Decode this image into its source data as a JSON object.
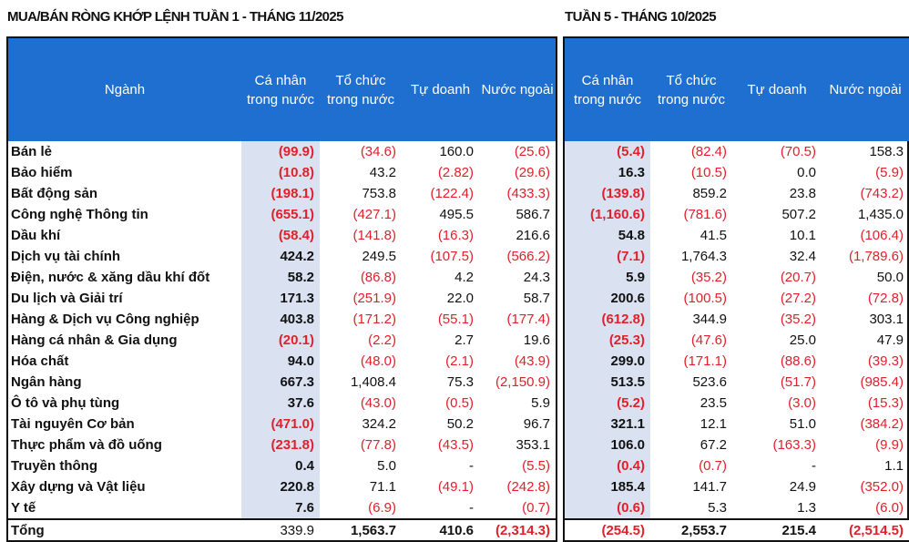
{
  "left": {
    "title": "MUA/BÁN RÒNG KHỚP LỆNH TUẦN 1 - THÁNG 11/2025",
    "headers": [
      "Ngành",
      "Cá nhân trong nước",
      "Tổ chức trong nước",
      "Tự doanh",
      "Nước ngoài"
    ]
  },
  "right": {
    "title": "TUẦN 5 - THÁNG 10/2025",
    "headers": [
      "Cá nhân trong nước",
      "Tổ chức trong nước",
      "Tự doanh",
      "Nước ngoài"
    ]
  },
  "colors": {
    "header_bg": "#1f6fd0",
    "highlight_col": "#dae2f2",
    "negative": "#e0202a"
  },
  "rows": [
    {
      "sector": "Bán lẻ",
      "left": [
        "(99.9)",
        "(34.6)",
        "160.0",
        "(25.6)"
      ],
      "right": [
        "(5.4)",
        "(82.4)",
        "(70.5)",
        "158.3"
      ]
    },
    {
      "sector": "Bảo hiểm",
      "left": [
        "(10.8)",
        "43.2",
        "(2.82)",
        "(29.6)"
      ],
      "right": [
        "16.3",
        "(10.5)",
        "0.0",
        "(5.9)"
      ]
    },
    {
      "sector": "Bất động sản",
      "left": [
        "(198.1)",
        "753.8",
        "(122.4)",
        "(433.3)"
      ],
      "right": [
        "(139.8)",
        "859.2",
        "23.8",
        "(743.2)"
      ]
    },
    {
      "sector": "Công nghệ Thông tin",
      "left": [
        "(655.1)",
        "(427.1)",
        "495.5",
        "586.7"
      ],
      "right": [
        "(1,160.6)",
        "(781.6)",
        "507.2",
        "1,435.0"
      ]
    },
    {
      "sector": "Dầu khí",
      "left": [
        "(58.4)",
        "(141.8)",
        "(16.3)",
        "216.6"
      ],
      "right": [
        "54.8",
        "41.5",
        "10.1",
        "(106.4)"
      ]
    },
    {
      "sector": "Dịch vụ tài chính",
      "left": [
        "424.2",
        "249.5",
        "(107.5)",
        "(566.2)"
      ],
      "right": [
        "(7.1)",
        "1,764.3",
        "32.4",
        "(1,789.6)"
      ]
    },
    {
      "sector": "Điện, nước & xăng dầu khí đốt",
      "left": [
        "58.2",
        "(86.8)",
        "4.2",
        "24.3"
      ],
      "right": [
        "5.9",
        "(35.2)",
        "(20.7)",
        "50.0"
      ]
    },
    {
      "sector": "Du lịch và Giải trí",
      "left": [
        "171.3",
        "(251.9)",
        "22.0",
        "58.7"
      ],
      "right": [
        "200.6",
        "(100.5)",
        "(27.2)",
        "(72.8)"
      ]
    },
    {
      "sector": "Hàng & Dịch vụ Công nghiệp",
      "left": [
        "403.8",
        "(171.2)",
        "(55.1)",
        "(177.4)"
      ],
      "right": [
        "(612.8)",
        "344.9",
        "(35.2)",
        "303.1"
      ]
    },
    {
      "sector": "Hàng cá nhân & Gia dụng",
      "left": [
        "(20.1)",
        "(2.2)",
        "2.7",
        "19.6"
      ],
      "right": [
        "(25.3)",
        "(47.6)",
        "25.0",
        "47.9"
      ]
    },
    {
      "sector": "Hóa chất",
      "left": [
        "94.0",
        "(48.0)",
        "(2.1)",
        "(43.9)"
      ],
      "right": [
        "299.0",
        "(171.1)",
        "(88.6)",
        "(39.3)"
      ]
    },
    {
      "sector": "Ngân hàng",
      "left": [
        "667.3",
        "1,408.4",
        "75.3",
        "(2,150.9)"
      ],
      "right": [
        "513.5",
        "523.6",
        "(51.7)",
        "(985.4)"
      ]
    },
    {
      "sector": "Ô tô và phụ tùng",
      "left": [
        "37.6",
        "(43.0)",
        "(0.5)",
        "5.9"
      ],
      "right": [
        "(5.2)",
        "23.5",
        "(3.0)",
        "(15.3)"
      ]
    },
    {
      "sector": "Tài nguyên Cơ bản",
      "left": [
        "(471.0)",
        "324.2",
        "50.2",
        "96.7"
      ],
      "right": [
        "321.1",
        "12.1",
        "51.0",
        "(384.2)"
      ]
    },
    {
      "sector": "Thực phẩm và đồ uống",
      "left": [
        "(231.8)",
        "(77.8)",
        "(43.5)",
        "353.1"
      ],
      "right": [
        "106.0",
        "67.2",
        "(163.3)",
        "(9.9)"
      ]
    },
    {
      "sector": "Truyền thông",
      "left": [
        "0.4",
        "5.0",
        "-",
        "(5.5)"
      ],
      "right": [
        "(0.4)",
        "(0.7)",
        "-",
        "1.1"
      ]
    },
    {
      "sector": "Xây dựng và Vật liệu",
      "left": [
        "220.8",
        "71.1",
        "(49.1)",
        "(242.8)"
      ],
      "right": [
        "185.4",
        "141.7",
        "24.9",
        "(352.0)"
      ]
    },
    {
      "sector": "Y tế",
      "left": [
        "7.6",
        "(6.9)",
        "-",
        "(0.7)"
      ],
      "right": [
        "(0.6)",
        "5.3",
        "1.3",
        "(6.0)"
      ]
    }
  ],
  "total": {
    "label": "Tổng",
    "left": [
      "339.9",
      "1,563.7",
      "410.6",
      "(2,314.3)"
    ],
    "right": [
      "(254.5)",
      "2,553.7",
      "215.4",
      "(2,514.5)"
    ]
  }
}
